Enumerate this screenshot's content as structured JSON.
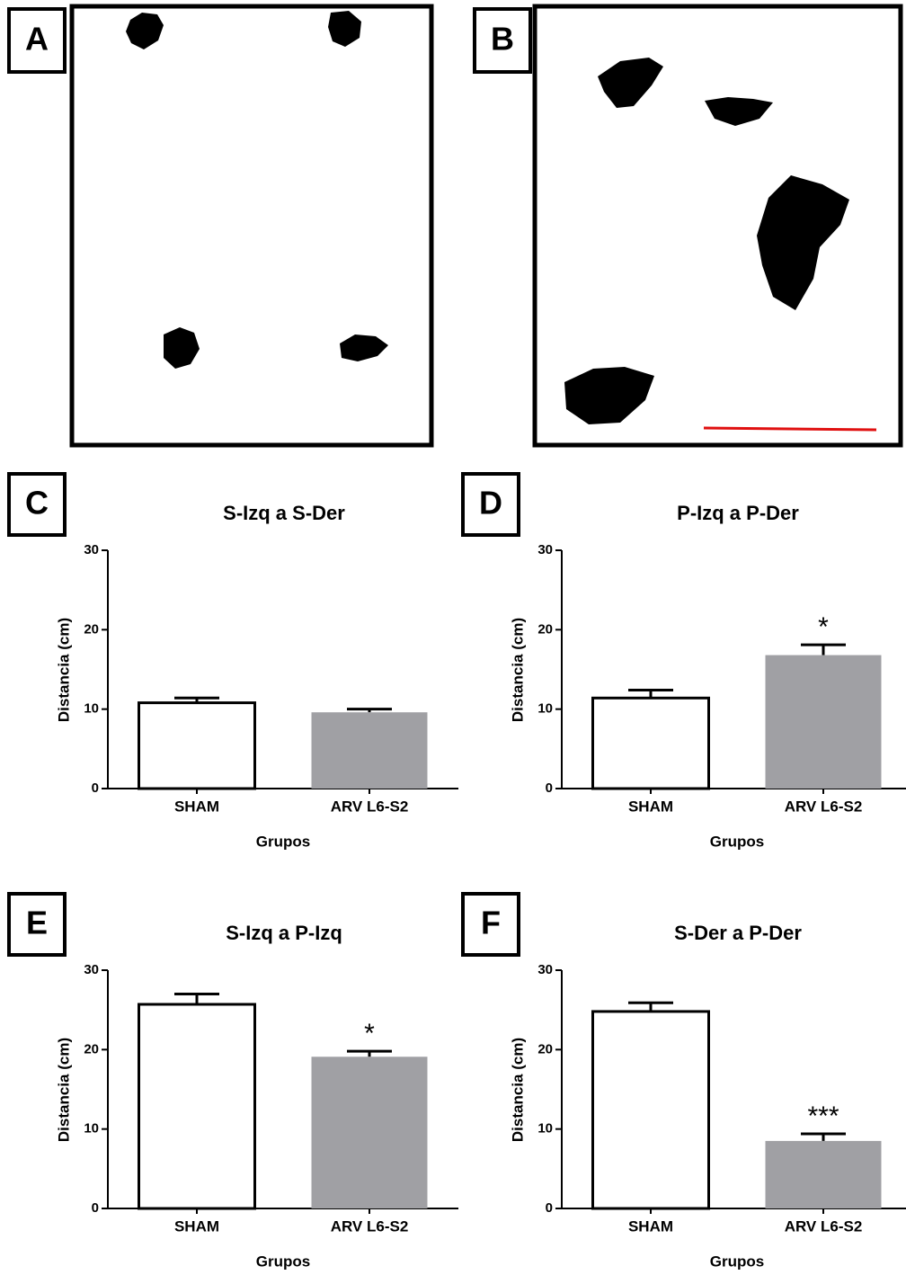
{
  "image_panels": [
    {
      "label": "A"
    },
    {
      "label": "B"
    }
  ],
  "chart_data": [
    {
      "panel_label": "C",
      "type": "bar",
      "title": "S-Izq a S-Der",
      "ylabel": "Distancia (cm)",
      "xlabel": "Grupos",
      "categories": [
        "SHAM",
        "ARV L6-S2"
      ],
      "values": [
        10.8,
        9.6
      ],
      "errors": [
        0.6,
        0.4
      ],
      "significance": [
        null,
        null
      ],
      "colors": [
        "#ffffff",
        "#a0a0a4"
      ],
      "ylim": [
        0,
        30
      ],
      "yticks": [
        0,
        10,
        20,
        30
      ]
    },
    {
      "panel_label": "D",
      "type": "bar",
      "title": "P-Izq a P-Der",
      "ylabel": "Distancia (cm)",
      "xlabel": "Grupos",
      "categories": [
        "SHAM",
        "ARV L6-S2"
      ],
      "values": [
        11.4,
        16.8
      ],
      "errors": [
        1.0,
        1.3
      ],
      "significance": [
        null,
        "*"
      ],
      "colors": [
        "#ffffff",
        "#a0a0a4"
      ],
      "ylim": [
        0,
        30
      ],
      "yticks": [
        0,
        10,
        20,
        30
      ]
    },
    {
      "panel_label": "E",
      "type": "bar",
      "title": "S-Izq a P-Izq",
      "ylabel": "Distancia (cm)",
      "xlabel": "Grupos",
      "categories": [
        "SHAM",
        "ARV L6-S2"
      ],
      "values": [
        25.7,
        19.1
      ],
      "errors": [
        1.3,
        0.7
      ],
      "significance": [
        null,
        "*"
      ],
      "colors": [
        "#ffffff",
        "#a0a0a4"
      ],
      "ylim": [
        0,
        30
      ],
      "yticks": [
        0,
        10,
        20,
        30
      ]
    },
    {
      "panel_label": "F",
      "type": "bar",
      "title": "S-Der a P-Der",
      "ylabel": "Distancia (cm)",
      "xlabel": "Grupos",
      "categories": [
        "SHAM",
        "ARV L6-S2"
      ],
      "values": [
        24.8,
        8.5
      ],
      "errors": [
        1.1,
        0.9
      ],
      "significance": [
        null,
        "***"
      ],
      "colors": [
        "#ffffff",
        "#a0a0a4"
      ],
      "ylim": [
        0,
        30
      ],
      "yticks": [
        0,
        10,
        20,
        30
      ]
    }
  ]
}
